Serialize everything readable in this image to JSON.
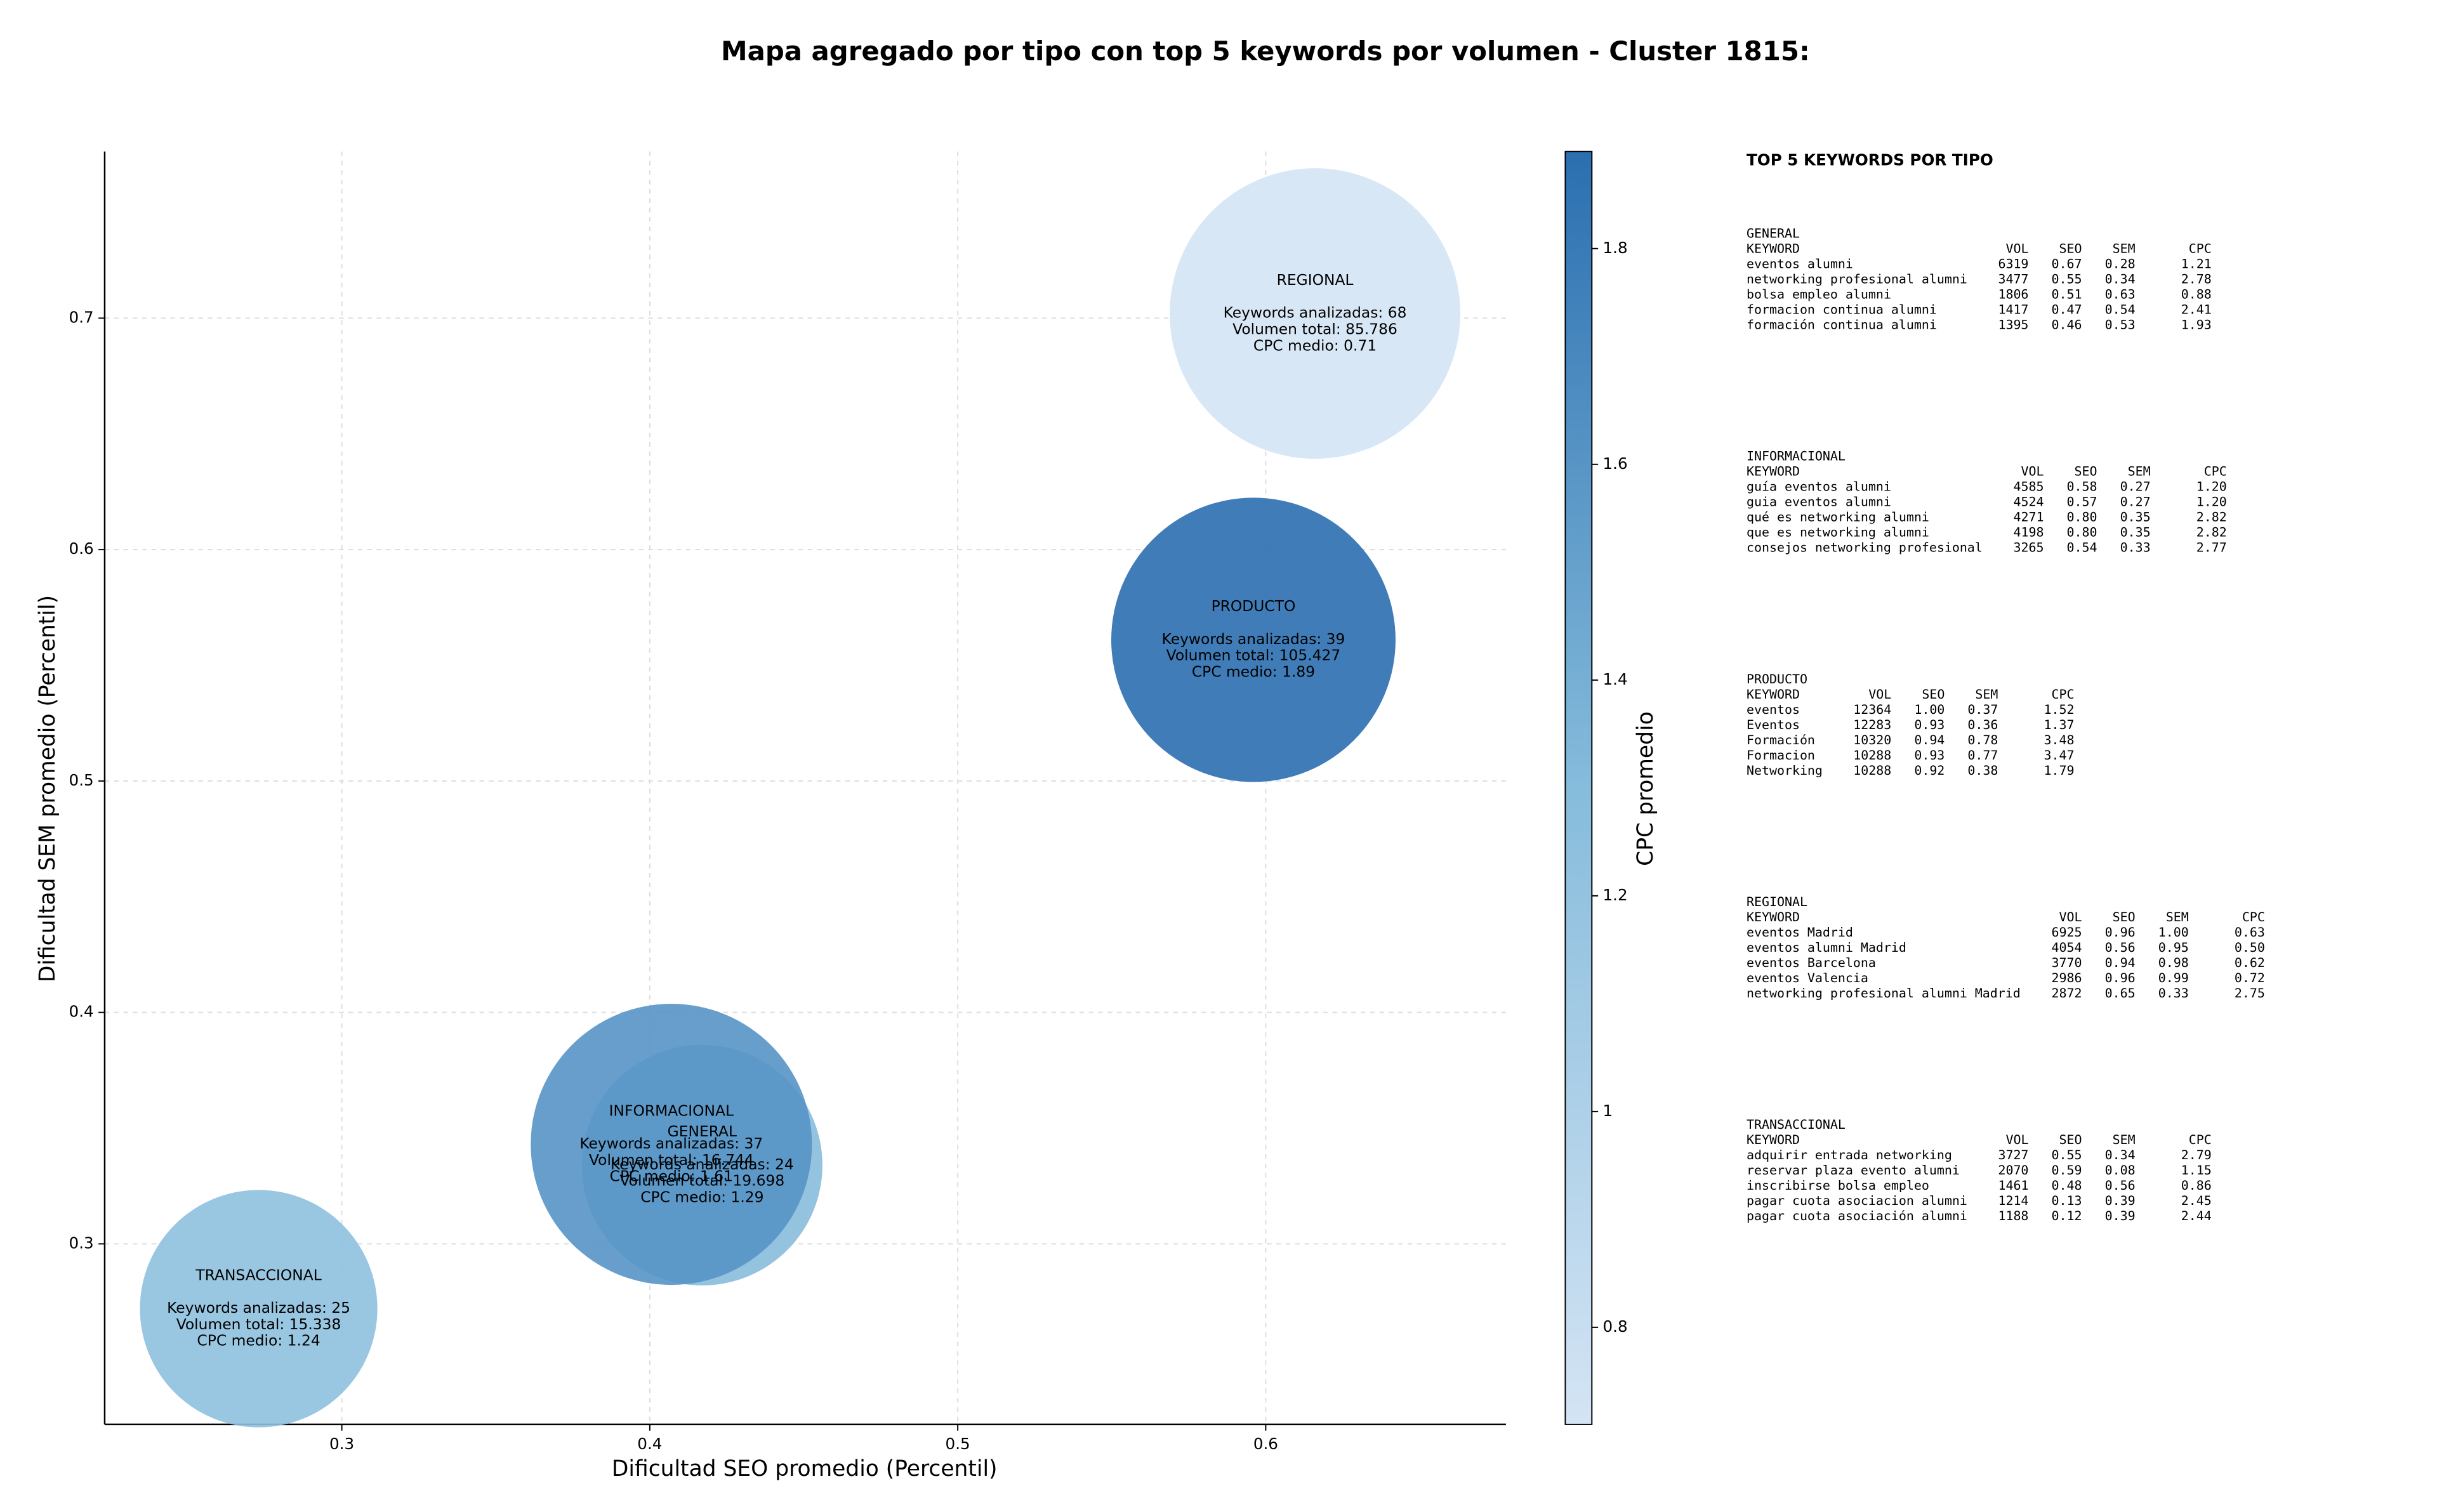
{
  "chart_data": {
    "type": "bubble",
    "title": "Mapa agregado por tipo con top 5 keywords por volumen - Cluster 1815:",
    "x_label": "Dificultad SEO promedio (Percentil)",
    "y_label": "Dificultad SEM promedio (Percentil)",
    "colorbar_label": "CPC promedio",
    "categories": [
      "GENERAL",
      "INFORMACIONAL",
      "PRODUCTO",
      "REGIONAL",
      "TRANSACCIONAL"
    ],
    "x": [
      0.417,
      0.407,
      0.596,
      0.616,
      0.273
    ],
    "values": [
      0.334,
      0.343,
      0.561,
      0.702,
      0.272
    ],
    "sizes": [
      77,
      90,
      91,
      93,
      76
    ],
    "cpc": [
      1.29,
      1.61,
      1.89,
      0.71,
      1.24
    ],
    "annotations": [
      [
        "Keywords analizadas: 24",
        "Volumen total: 19.698",
        "CPC medio: 1.29"
      ],
      [
        "Keywords analizadas: 37",
        "Volumen total: 16.744",
        "CPC medio: 1.61"
      ],
      [
        "Keywords analizadas: 39",
        "Volumen total: 105.427",
        "CPC medio: 1.89"
      ],
      [
        "Keywords analizadas: 68",
        "Volumen total: 85.786",
        "CPC medio: 0.71"
      ],
      [
        "Keywords analizadas: 25",
        "Volumen total: 15.338",
        "CPC medio: 1.24"
      ]
    ],
    "xlim": [
      0.223,
      0.678
    ],
    "ylim": [
      0.222,
      0.772
    ],
    "xticks": [
      0.3,
      0.4,
      0.5,
      0.6
    ],
    "yticks": [
      0.3,
      0.4,
      0.5,
      0.6,
      0.7
    ],
    "clim": [
      0.71,
      1.89
    ],
    "cticks": [
      0.8,
      1.0,
      1.2,
      1.4,
      1.6,
      1.8
    ],
    "colormap": [
      "#d4e4f4",
      "#86bcdc",
      "#2b6fb0"
    ],
    "grid": true
  },
  "side_panel": {
    "title": "TOP 5 KEYWORDS POR TIPO",
    "columns": [
      "KEYWORD",
      "VOL",
      "SEO",
      "SEM",
      "CPC"
    ],
    "groups": [
      {
        "name": "GENERAL",
        "rows": [
          [
            "eventos alumni",
            "6319",
            "0.67",
            "0.28",
            "1.21"
          ],
          [
            "networking profesional alumni",
            "3477",
            "0.55",
            "0.34",
            "2.78"
          ],
          [
            "bolsa empleo alumni",
            "1806",
            "0.51",
            "0.63",
            "0.88"
          ],
          [
            "formacion continua alumni",
            "1417",
            "0.47",
            "0.54",
            "2.41"
          ],
          [
            "formación continua alumni",
            "1395",
            "0.46",
            "0.53",
            "1.93"
          ]
        ]
      },
      {
        "name": "INFORMACIONAL",
        "rows": [
          [
            "guía eventos alumni",
            "4585",
            "0.58",
            "0.27",
            "1.20"
          ],
          [
            "guia eventos alumni",
            "4524",
            "0.57",
            "0.27",
            "1.20"
          ],
          [
            "qué es networking alumni",
            "4271",
            "0.80",
            "0.35",
            "2.82"
          ],
          [
            "que es networking alumni",
            "4198",
            "0.80",
            "0.35",
            "2.82"
          ],
          [
            "consejos networking profesional",
            "3265",
            "0.54",
            "0.33",
            "2.77"
          ]
        ]
      },
      {
        "name": "PRODUCTO",
        "rows": [
          [
            "eventos",
            "12364",
            "1.00",
            "0.37",
            "1.52"
          ],
          [
            "Eventos",
            "12283",
            "0.93",
            "0.36",
            "1.37"
          ],
          [
            "Formación",
            "10320",
            "0.94",
            "0.78",
            "3.48"
          ],
          [
            "Formacion",
            "10288",
            "0.93",
            "0.77",
            "3.47"
          ],
          [
            "Networking",
            "10288",
            "0.92",
            "0.38",
            "1.79"
          ]
        ]
      },
      {
        "name": "REGIONAL",
        "rows": [
          [
            "eventos Madrid",
            "6925",
            "0.96",
            "1.00",
            "0.63"
          ],
          [
            "eventos alumni Madrid",
            "4054",
            "0.56",
            "0.95",
            "0.50"
          ],
          [
            "eventos Barcelona",
            "3770",
            "0.94",
            "0.98",
            "0.62"
          ],
          [
            "eventos Valencia",
            "2986",
            "0.96",
            "0.99",
            "0.72"
          ],
          [
            "networking profesional alumni Madrid",
            "2872",
            "0.65",
            "0.33",
            "2.75"
          ]
        ]
      },
      {
        "name": "TRANSACCIONAL",
        "rows": [
          [
            "adquirir entrada networking",
            "3727",
            "0.55",
            "0.34",
            "2.79"
          ],
          [
            "reservar plaza evento alumni",
            "2070",
            "0.59",
            "0.08",
            "1.15"
          ],
          [
            "inscribirse bolsa empleo",
            "1461",
            "0.48",
            "0.56",
            "0.86"
          ],
          [
            "pagar cuota asociacion alumni",
            "1214",
            "0.13",
            "0.39",
            "2.45"
          ],
          [
            "pagar cuota asociación alumni",
            "1188",
            "0.12",
            "0.39",
            "2.44"
          ]
        ]
      }
    ]
  }
}
